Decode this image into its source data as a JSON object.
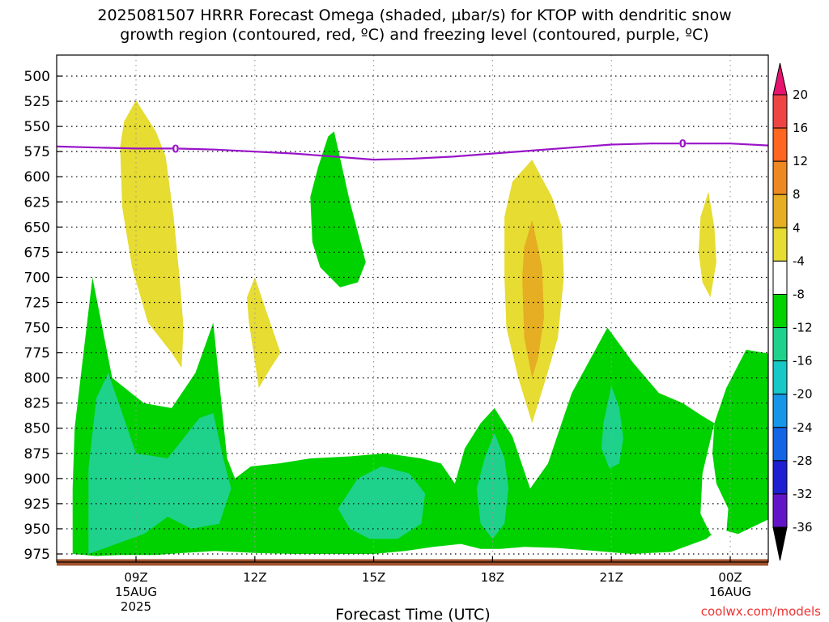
{
  "title_line1": "2025081507 HRRR Forecast Omega (shaded, µbar/s) for KTOP with dendritic snow",
  "title_line2": "growth region (contoured, red, ºC) and freezing level (contoured, purple, ºC)",
  "credit": "coolwx.com/models",
  "chart_data": {
    "type": "heatmap",
    "title": "2025081507 HRRR Forecast Omega (shaded, µbar/s) for KTOP with dendritic snow growth region (contoured, red, ºC) and freezing level (contoured, purple, ºC)",
    "xlabel": "Forecast Time (UTC)",
    "ylabel": "",
    "x_hours_range": [
      7,
      25
    ],
    "y_pressure_range": [
      975,
      500
    ],
    "y_ticks": [
      "500",
      "525",
      "550",
      "575",
      "600",
      "625",
      "650",
      "675",
      "700",
      "725",
      "750",
      "775",
      "800",
      "825",
      "850",
      "875",
      "900",
      "925",
      "950",
      "975"
    ],
    "x_ticks": [
      {
        "hour": 9,
        "label": "09Z",
        "sub1": "15AUG",
        "sub2": "2025"
      },
      {
        "hour": 12,
        "label": "12Z",
        "sub1": "",
        "sub2": ""
      },
      {
        "hour": 15,
        "label": "15Z",
        "sub1": "",
        "sub2": ""
      },
      {
        "hour": 18,
        "label": "18Z",
        "sub1": "",
        "sub2": ""
      },
      {
        "hour": 21,
        "label": "21Z",
        "sub1": "",
        "sub2": ""
      },
      {
        "hour": 24,
        "label": "00Z",
        "sub1": "16AUG",
        "sub2": ""
      }
    ],
    "colorbar": {
      "labels": [
        "20",
        "16",
        "12",
        "8",
        "4",
        "-4",
        "-8",
        "-12",
        "-16",
        "-20",
        "-24",
        "-28",
        "-32",
        "-36"
      ],
      "colors": [
        "#ffffff",
        "#ee4444",
        "#ff6622",
        "#ee8822",
        "#e6ae22",
        "#e6dc32",
        "#ffffff",
        "#00d200",
        "#1ed28c",
        "#16c8c8",
        "#1696e6",
        "#1464e6",
        "#1e1ed2",
        "#6414c8",
        "#9b14c8",
        "#aaaaaa"
      ],
      "top_triangle_color": "#e6146e",
      "bottom_triangle_color": "#000000"
    },
    "freezing_level": {
      "color": "#9914c8",
      "label": "0",
      "points": [
        [
          7.0,
          570
        ],
        [
          8.0,
          571
        ],
        [
          9.0,
          572
        ],
        [
          10.0,
          572
        ],
        [
          11.0,
          573
        ],
        [
          12.0,
          575
        ],
        [
          13.0,
          577
        ],
        [
          14.0,
          580
        ],
        [
          15.0,
          583
        ],
        [
          16.0,
          582
        ],
        [
          17.0,
          580
        ],
        [
          18.0,
          577
        ],
        [
          19.0,
          574
        ],
        [
          20.0,
          571
        ],
        [
          21.0,
          568
        ],
        [
          22.0,
          567
        ],
        [
          23.0,
          567
        ],
        [
          24.0,
          567
        ],
        [
          25.0,
          569
        ]
      ],
      "label_positions": [
        [
          10.0,
          572
        ],
        [
          22.8,
          567
        ]
      ]
    },
    "shaded_regions": [
      {
        "value_range": [
          -12,
          -8
        ],
        "color": "#00d200",
        "points": [
          [
            7.4,
            975
          ],
          [
            7.4,
            910
          ],
          [
            7.45,
            850
          ],
          [
            7.6,
            800
          ],
          [
            7.9,
            700
          ],
          [
            8.4,
            800
          ],
          [
            9.2,
            825
          ],
          [
            9.9,
            830
          ],
          [
            10.5,
            795
          ],
          [
            10.95,
            745
          ],
          [
            11.3,
            880
          ],
          [
            11.5,
            900
          ],
          [
            11.9,
            888
          ],
          [
            12.6,
            885
          ],
          [
            13.4,
            880
          ],
          [
            14.4,
            878
          ],
          [
            15.3,
            875
          ],
          [
            16.2,
            880
          ],
          [
            16.7,
            885
          ],
          [
            17.05,
            905
          ],
          [
            17.3,
            870
          ],
          [
            17.7,
            845
          ],
          [
            18.05,
            830
          ],
          [
            18.5,
            858
          ],
          [
            18.95,
            910
          ],
          [
            19.4,
            885
          ],
          [
            20.0,
            815
          ],
          [
            20.9,
            750
          ],
          [
            21.55,
            785
          ],
          [
            22.2,
            815
          ],
          [
            22.8,
            825
          ],
          [
            23.3,
            838
          ],
          [
            23.6,
            845
          ],
          [
            23.9,
            810
          ],
          [
            24.4,
            772
          ],
          [
            25.0,
            776
          ],
          [
            25.0,
            940
          ],
          [
            24.2,
            955
          ],
          [
            23.7,
            950
          ],
          [
            23.4,
            960
          ],
          [
            22.5,
            973
          ],
          [
            21.5,
            975
          ],
          [
            20.6,
            972
          ],
          [
            19.6,
            969
          ],
          [
            18.8,
            968
          ],
          [
            18.2,
            970
          ],
          [
            17.7,
            970
          ],
          [
            17.2,
            965
          ],
          [
            16.5,
            968
          ],
          [
            15.8,
            972
          ],
          [
            15.0,
            975
          ],
          [
            14.0,
            975
          ],
          [
            13.0,
            975
          ],
          [
            12.0,
            974
          ],
          [
            11.0,
            972
          ],
          [
            10.2,
            974
          ],
          [
            9.5,
            976
          ],
          [
            8.6,
            976
          ],
          [
            8.0,
            977
          ]
        ]
      },
      {
        "value_range": [
          -12,
          -8
        ],
        "color": "#00d200",
        "points": [
          [
            14.0,
            555
          ],
          [
            14.4,
            625
          ],
          [
            14.8,
            685
          ],
          [
            14.6,
            705
          ],
          [
            14.15,
            710
          ],
          [
            13.65,
            690
          ],
          [
            13.45,
            665
          ],
          [
            13.4,
            620
          ],
          [
            13.6,
            590
          ],
          [
            13.85,
            560
          ]
        ]
      },
      {
        "value_range": [
          -16,
          -12
        ],
        "color": "#1ed28c",
        "points": [
          [
            7.8,
            975
          ],
          [
            7.8,
            890
          ],
          [
            8.0,
            820
          ],
          [
            8.3,
            795
          ],
          [
            9.0,
            875
          ],
          [
            9.8,
            880
          ],
          [
            10.6,
            840
          ],
          [
            10.95,
            835
          ],
          [
            11.2,
            880
          ],
          [
            11.4,
            910
          ],
          [
            11.1,
            945
          ],
          [
            10.4,
            950
          ],
          [
            9.8,
            938
          ],
          [
            9.2,
            955
          ],
          [
            8.5,
            965
          ]
        ]
      },
      {
        "value_range": [
          -16,
          -12
        ],
        "color": "#1ed28c",
        "points": [
          [
            14.1,
            930
          ],
          [
            14.6,
            900
          ],
          [
            15.2,
            888
          ],
          [
            15.9,
            895
          ],
          [
            16.3,
            915
          ],
          [
            16.2,
            945
          ],
          [
            15.6,
            960
          ],
          [
            14.9,
            960
          ],
          [
            14.4,
            950
          ]
        ]
      },
      {
        "value_range": [
          -16,
          -12
        ],
        "color": "#1ed28c",
        "points": [
          [
            18.05,
            855
          ],
          [
            17.8,
            880
          ],
          [
            17.6,
            910
          ],
          [
            17.7,
            945
          ],
          [
            18.0,
            960
          ],
          [
            18.3,
            945
          ],
          [
            18.4,
            910
          ],
          [
            18.3,
            880
          ]
        ]
      },
      {
        "value_range": [
          -16,
          -12
        ],
        "color": "#1ed28c",
        "points": [
          [
            21.0,
            808
          ],
          [
            20.8,
            845
          ],
          [
            20.75,
            870
          ],
          [
            20.95,
            890
          ],
          [
            21.2,
            885
          ],
          [
            21.3,
            860
          ],
          [
            21.2,
            830
          ]
        ]
      },
      {
        "value_range": [
          4,
          8
        ],
        "color": "#e6dc32",
        "points": [
          [
            9.0,
            524
          ],
          [
            9.5,
            555
          ],
          [
            9.75,
            580
          ],
          [
            9.95,
            640
          ],
          [
            10.1,
            700
          ],
          [
            10.2,
            750
          ],
          [
            10.15,
            790
          ],
          [
            9.9,
            775
          ],
          [
            9.3,
            745
          ],
          [
            8.9,
            690
          ],
          [
            8.65,
            630
          ],
          [
            8.6,
            570
          ],
          [
            8.7,
            545
          ]
        ]
      },
      {
        "value_range": [
          4,
          8
        ],
        "color": "#e6dc32",
        "points": [
          [
            12.0,
            700
          ],
          [
            12.3,
            735
          ],
          [
            12.65,
            775
          ],
          [
            12.4,
            790
          ],
          [
            12.1,
            810
          ],
          [
            11.85,
            745
          ],
          [
            11.8,
            720
          ]
        ]
      },
      {
        "value_range": [
          4,
          8
        ],
        "color": "#e6dc32",
        "points": [
          [
            19.0,
            583
          ],
          [
            19.5,
            620
          ],
          [
            19.75,
            650
          ],
          [
            19.8,
            700
          ],
          [
            19.65,
            760
          ],
          [
            19.35,
            800
          ],
          [
            19.0,
            845
          ],
          [
            18.65,
            800
          ],
          [
            18.35,
            750
          ],
          [
            18.3,
            700
          ],
          [
            18.3,
            640
          ],
          [
            18.5,
            605
          ]
        ]
      },
      {
        "value_range": [
          8,
          12
        ],
        "color": "#e6ae22",
        "points": [
          [
            19.0,
            643
          ],
          [
            19.25,
            690
          ],
          [
            19.3,
            740
          ],
          [
            19.15,
            780
          ],
          [
            19.0,
            800
          ],
          [
            18.8,
            760
          ],
          [
            18.75,
            700
          ],
          [
            18.8,
            670
          ]
        ]
      },
      {
        "value_range": [
          4,
          8
        ],
        "color": "#e6dc32",
        "points": [
          [
            23.45,
            615
          ],
          [
            23.6,
            650
          ],
          [
            23.65,
            685
          ],
          [
            23.5,
            720
          ],
          [
            23.3,
            705
          ],
          [
            23.2,
            675
          ],
          [
            23.25,
            640
          ]
        ]
      }
    ],
    "white_holes": [
      {
        "color": "#ffffff",
        "points": [
          [
            23.6,
            845
          ],
          [
            23.3,
            895
          ],
          [
            23.25,
            935
          ],
          [
            23.5,
            955
          ],
          [
            23.9,
            955
          ],
          [
            23.95,
            930
          ],
          [
            23.65,
            905
          ],
          [
            23.55,
            875
          ]
        ]
      }
    ],
    "ground": {
      "color": "#a0522d",
      "pressure": 981
    }
  }
}
